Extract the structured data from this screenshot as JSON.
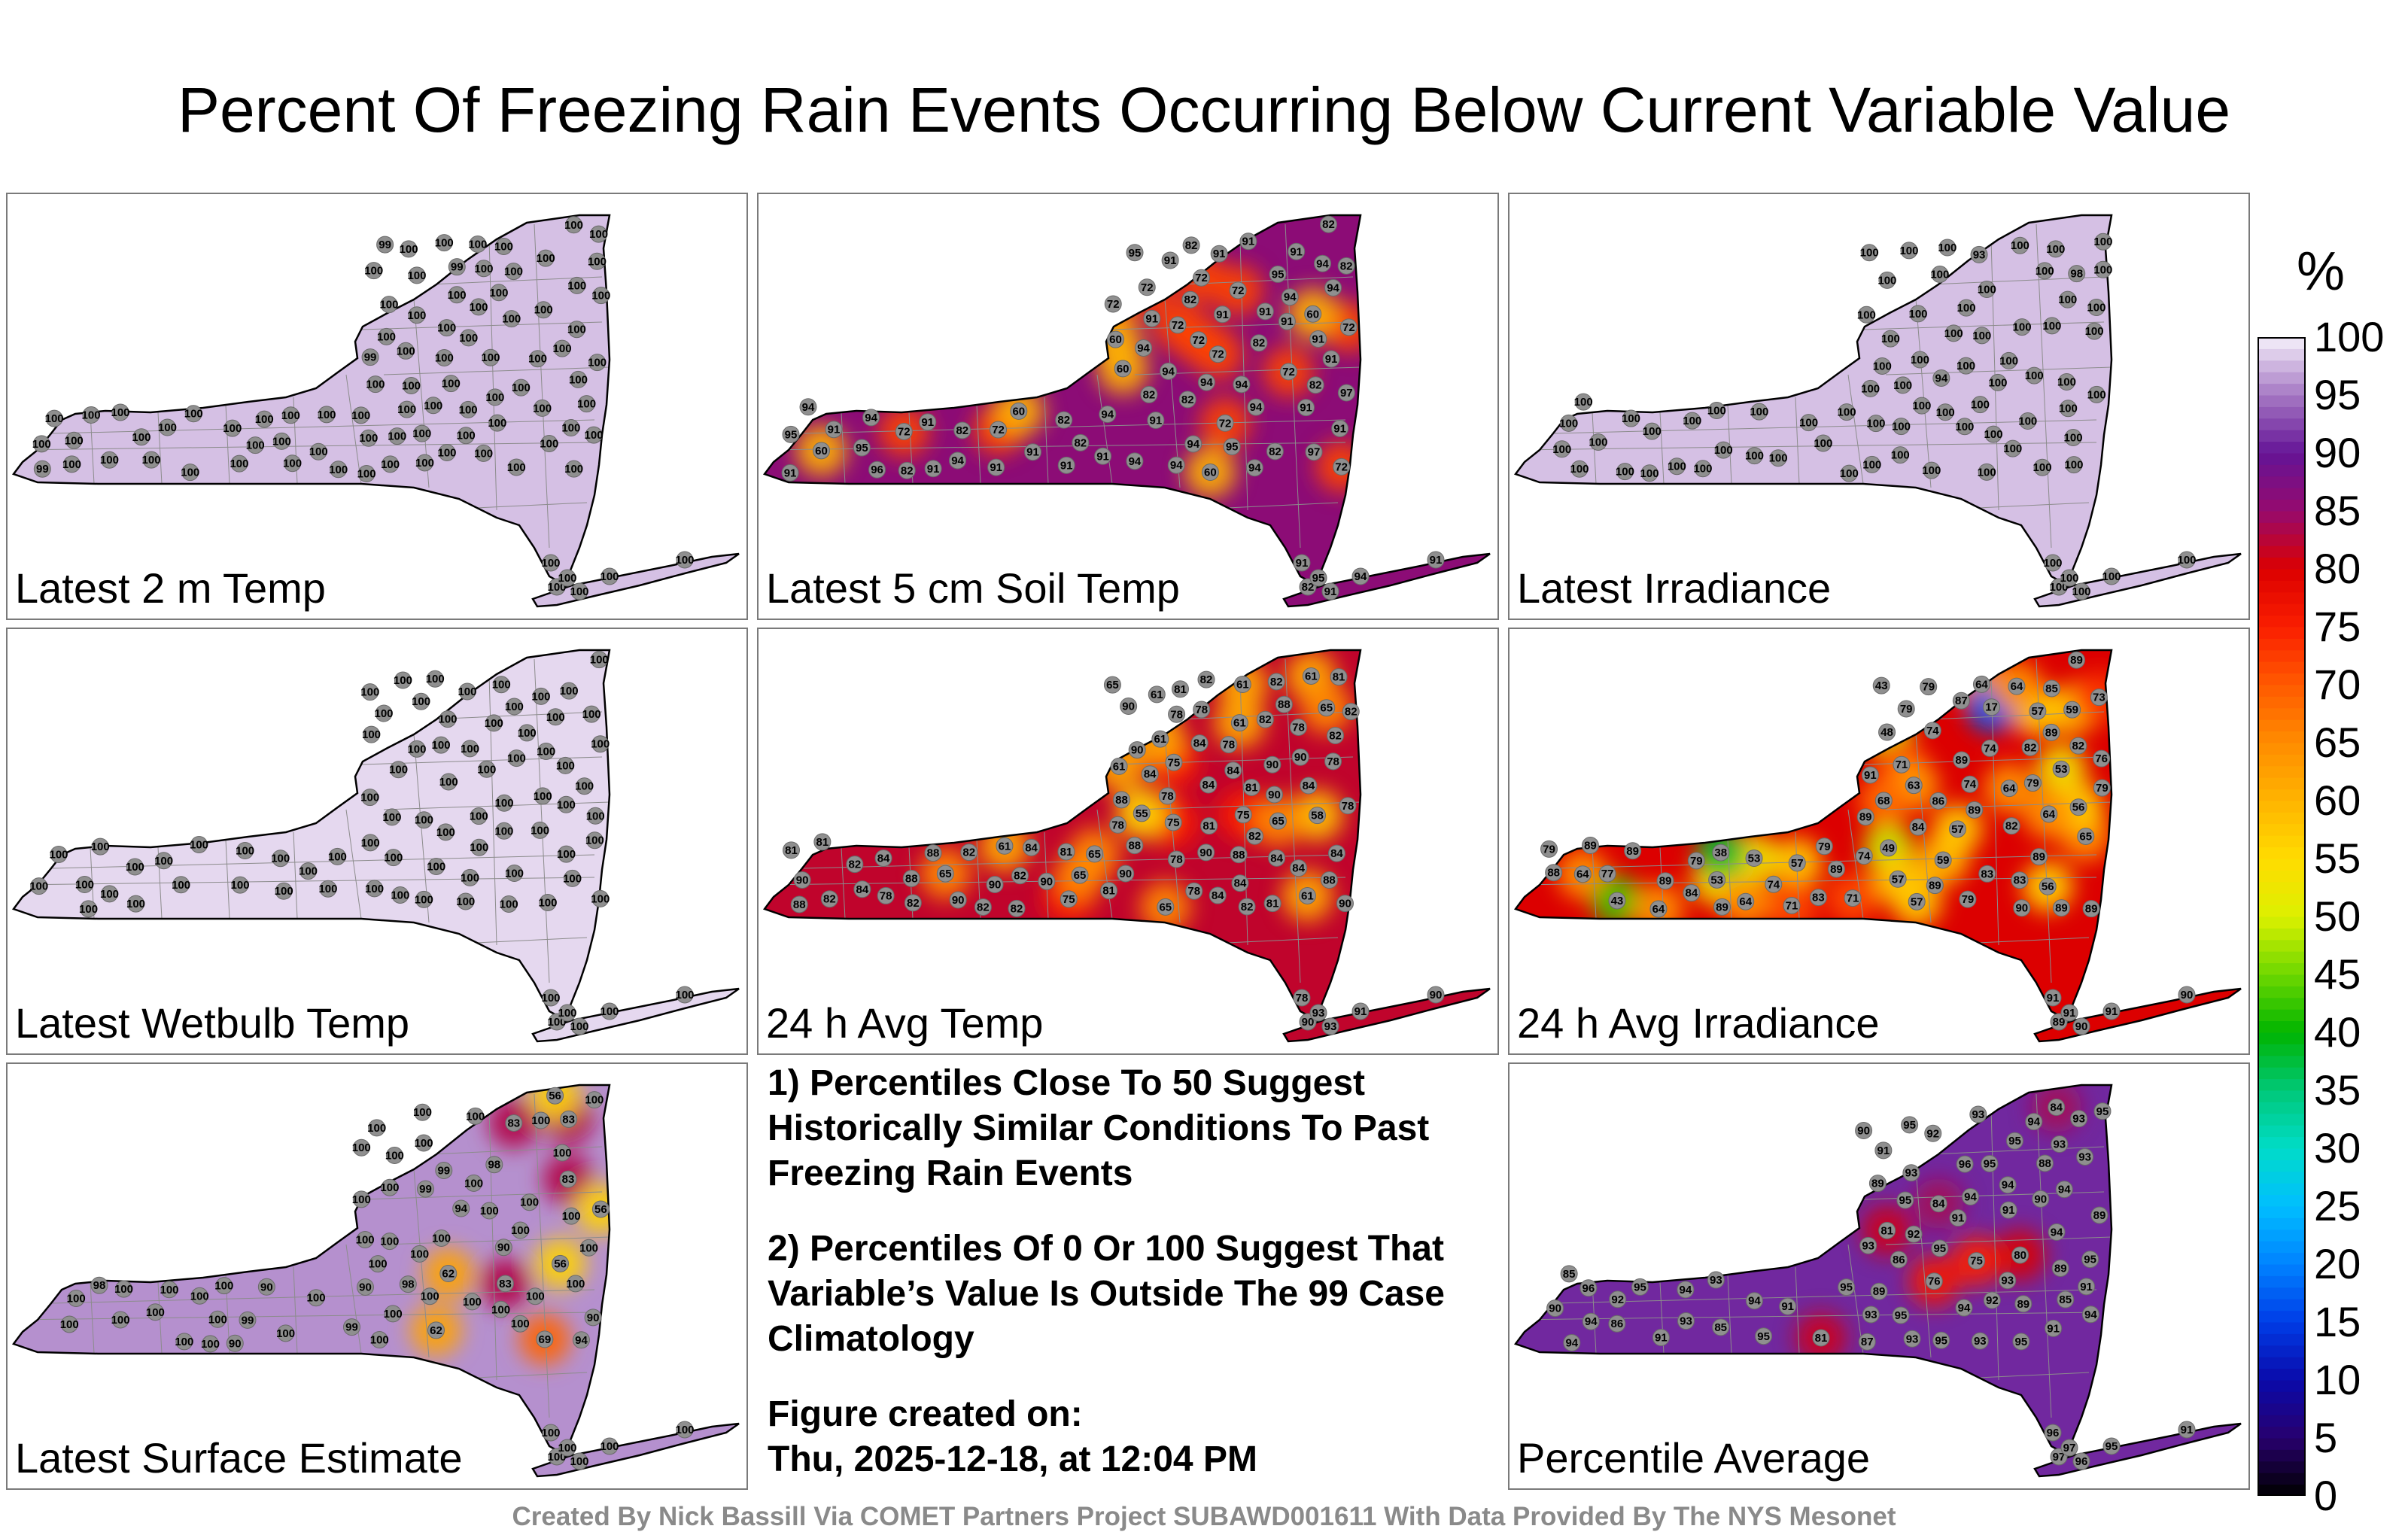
{
  "title": "Percent Of Freezing Rain Events Occurring Below Current Variable Value",
  "colorbar": {
    "unit": "%",
    "ticks": [
      100,
      95,
      90,
      85,
      80,
      75,
      70,
      65,
      60,
      55,
      50,
      45,
      40,
      35,
      30,
      25,
      20,
      15,
      10,
      5,
      0
    ]
  },
  "notes": {
    "note1": "1) Percentiles Close To 50 Suggest Historically Similar Conditions To Past Freezing Rain Events",
    "note2": "2) Percentiles Of 0 Or 100 Suggest That Variable’s Value Is Outside The 99 Case Climatology",
    "created_label": "Figure created on:",
    "created_value": "Thu, 2025-12-18, at 12:04 PM"
  },
  "footer": "Created By Nick Bassill Via COMET Partners Project SUBAWD001611 With Data Provided By The NYS Mesonet",
  "chart_data": [
    {
      "type": "heatmap",
      "panel": "Latest 2 m Temp",
      "shading_percentile": 98,
      "values": [
        99,
        100,
        100,
        100,
        100,
        100,
        100,
        100,
        99,
        100,
        100,
        100,
        100,
        100,
        99,
        100,
        100,
        100,
        100,
        100,
        100,
        100,
        100,
        100,
        100,
        100,
        100,
        100,
        100,
        100,
        100,
        100,
        100,
        100,
        100,
        100,
        100,
        99,
        100,
        100,
        100,
        100,
        100,
        100,
        100,
        100,
        100,
        100,
        100,
        100,
        100,
        100,
        100,
        100,
        100,
        100,
        100,
        100,
        100,
        100,
        100,
        100,
        100,
        100,
        100,
        100,
        100,
        100,
        100,
        100,
        100,
        100,
        100,
        100,
        100,
        100,
        100,
        100,
        100,
        100,
        100,
        100,
        100,
        100,
        100,
        100,
        100,
        100,
        100,
        100
      ]
    },
    {
      "type": "heatmap",
      "panel": "Latest 5 cm Soil Temp",
      "shading_percentile": 86,
      "values": [
        82,
        91,
        94,
        72,
        72,
        91,
        91,
        94,
        97,
        82,
        72,
        94,
        94,
        95,
        82,
        97,
        82,
        72,
        94,
        82,
        91,
        91,
        95,
        72,
        96,
        60,
        82,
        91,
        91,
        72,
        72,
        95,
        94,
        94,
        94,
        91,
        94,
        94,
        91,
        91,
        60,
        91,
        72,
        95,
        94,
        91,
        82,
        91,
        72,
        82,
        91,
        94,
        91,
        72,
        94,
        82,
        94,
        91,
        95,
        91,
        82,
        91,
        91,
        91,
        82,
        60,
        72,
        94,
        82,
        82,
        60,
        60,
        72,
        72,
        91,
        94,
        60,
        91,
        82,
        95,
        91,
        94,
        91
      ]
    },
    {
      "type": "heatmap",
      "panel": "Latest Irradiance",
      "shading_percentile": 98,
      "values": [
        100,
        100,
        100,
        100,
        100,
        100,
        100,
        100,
        100,
        100,
        100,
        100,
        100,
        100,
        100,
        100,
        100,
        100,
        100,
        100,
        100,
        100,
        100,
        100,
        100,
        100,
        100,
        100,
        100,
        100,
        94,
        100,
        100,
        100,
        100,
        100,
        100,
        100,
        100,
        100,
        100,
        100,
        100,
        100,
        100,
        100,
        100,
        98,
        100,
        100,
        100,
        100,
        100,
        100,
        100,
        100,
        100,
        100,
        100,
        93,
        100,
        100,
        100,
        100,
        100,
        100,
        100,
        100,
        100,
        100,
        100,
        100,
        100,
        100,
        100,
        100,
        100,
        100,
        100
      ]
    },
    {
      "type": "heatmap",
      "panel": "Latest Wetbulb Temp",
      "shading_percentile": 99,
      "values": [
        100,
        100,
        100,
        100,
        100,
        100,
        100,
        100,
        100,
        100,
        100,
        100,
        100,
        100,
        100,
        100,
        100,
        100,
        100,
        100,
        100,
        100,
        100,
        100,
        100,
        100,
        100,
        100,
        100,
        100,
        100,
        100,
        100,
        100,
        100,
        100,
        100,
        100,
        100,
        100,
        100,
        100,
        100,
        100,
        100,
        100,
        100,
        100,
        100,
        100,
        100,
        100,
        100,
        100,
        100,
        100,
        100,
        100,
        100,
        100,
        100,
        100,
        100,
        100,
        100,
        100,
        100,
        100,
        100,
        100,
        100,
        100,
        100,
        100,
        100,
        100,
        100,
        100,
        100
      ]
    },
    {
      "type": "heatmap",
      "panel": "24 h Avg Temp",
      "shading_percentile": 82,
      "values": [
        61,
        65,
        61,
        75,
        61,
        58,
        65,
        75,
        78,
        90,
        84,
        78,
        75,
        81,
        61,
        61,
        61,
        78,
        84,
        61,
        88,
        90,
        81,
        90,
        90,
        81,
        65,
        61,
        88,
        84,
        90,
        88,
        90,
        84,
        81,
        84,
        82,
        65,
        75,
        90,
        90,
        88,
        90,
        84,
        81,
        81,
        82,
        82,
        84,
        82,
        78,
        90,
        65,
        82,
        78,
        88,
        84,
        82,
        84,
        82,
        78,
        84,
        90,
        90,
        78,
        82,
        88,
        84,
        81,
        78,
        84,
        82,
        78,
        65,
        55,
        82,
        78,
        81,
        82,
        82,
        88,
        81,
        82,
        82,
        78,
        84,
        65,
        88,
        78,
        90,
        93,
        93,
        91,
        90
      ]
    },
    {
      "type": "heatmap",
      "panel": "24 h Avg Irradiance",
      "shading_percentile": 80,
      "values": [
        43,
        49,
        59,
        56,
        59,
        48,
        64,
        64,
        74,
        57,
        64,
        53,
        17,
        43,
        65,
        74,
        57,
        71,
        53,
        63,
        79,
        79,
        79,
        57,
        64,
        56,
        57,
        68,
        64,
        71,
        64,
        77,
        73,
        79,
        74,
        74,
        74,
        71,
        82,
        83,
        79,
        84,
        64,
        57,
        79,
        76,
        89,
        83,
        85,
        87,
        88,
        89,
        53,
        79,
        79,
        89,
        89,
        91,
        82,
        89,
        86,
        89,
        83,
        89,
        89,
        89,
        90,
        89,
        89,
        84,
        89,
        82,
        89,
        38,
        89,
        91,
        89,
        91,
        90,
        91,
        90
      ]
    },
    {
      "type": "heatmap",
      "panel": "Latest Surface Estimate",
      "shading_percentile": 96,
      "values": [
        83,
        56,
        83,
        90,
        56,
        98,
        83,
        90,
        69,
        100,
        99,
        56,
        62,
        100,
        99,
        62,
        90,
        90,
        83,
        100,
        100,
        100,
        99,
        98,
        100,
        100,
        100,
        100,
        100,
        100,
        100,
        100,
        94,
        99,
        94,
        100,
        100,
        100,
        90,
        100,
        98,
        100,
        100,
        100,
        100,
        100,
        100,
        100,
        100,
        100,
        100,
        100,
        100,
        100,
        100,
        100,
        100,
        100,
        100,
        100,
        100,
        100,
        100,
        100,
        100,
        100,
        100,
        100,
        100,
        100,
        100,
        100,
        100
      ]
    },
    {
      "type": "heatmap",
      "panel": "Percentile Average",
      "shading_percentile": 91,
      "values": [
        81,
        80,
        85,
        85,
        87,
        75,
        89,
        86,
        91,
        89,
        84,
        86,
        89,
        76,
        81,
        89,
        93,
        93,
        94,
        94,
        85,
        90,
        90,
        89,
        92,
        91,
        91,
        93,
        95,
        94,
        95,
        91,
        92,
        93,
        93,
        96,
        93,
        95,
        93,
        95,
        94,
        92,
        91,
        90,
        93,
        94,
        95,
        94,
        92,
        93,
        95,
        95,
        94,
        93,
        94,
        95,
        95,
        93,
        94,
        94,
        91,
        95,
        95,
        96,
        95,
        91,
        88,
        95,
        94,
        84,
        93,
        96,
        97,
        97,
        96,
        95,
        91
      ]
    }
  ]
}
